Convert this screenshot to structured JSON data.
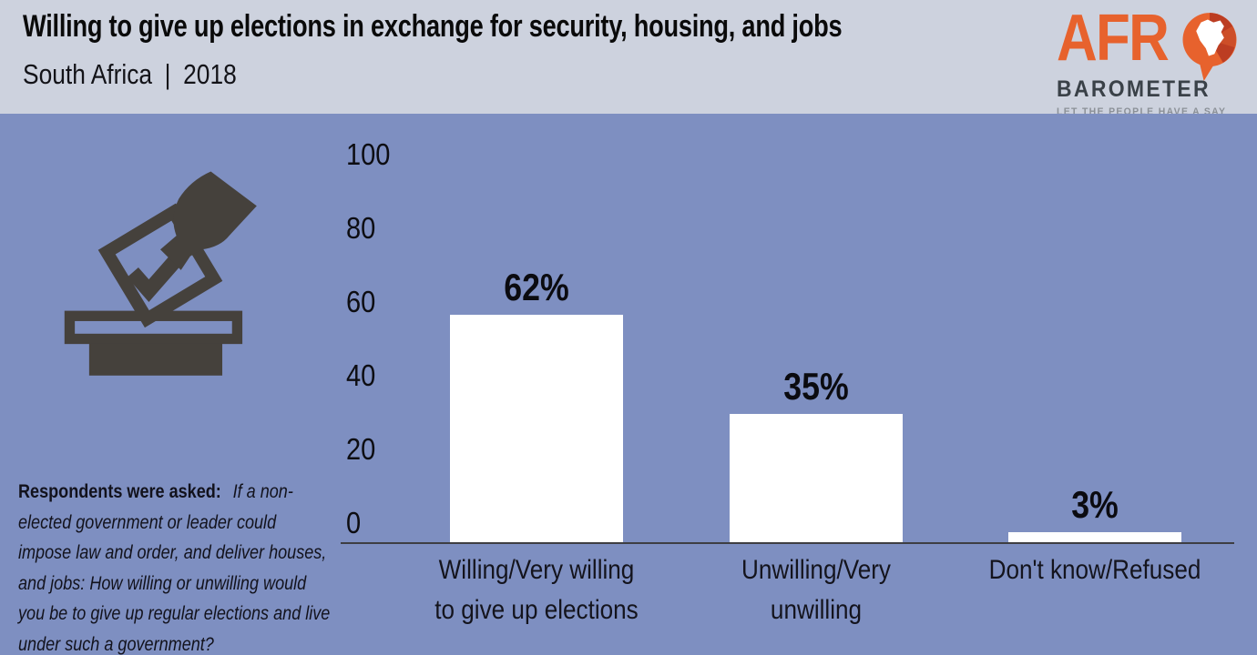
{
  "header": {
    "title": "Willing to give up elections in exchange for security, housing, and jobs",
    "country": "South Africa",
    "separator": "|",
    "year": "2018"
  },
  "logo": {
    "word_part": "AFR",
    "word_o_icon": "africa-speech-bubble-icon",
    "word2": "BAROMETER",
    "tagline": "LET THE PEOPLE HAVE A SAY",
    "orange": "#E7622D",
    "dark_red": "#BC3D22",
    "mid_red": "#CD4E28",
    "slate": "#3A4148",
    "gray": "#8B9097"
  },
  "question": {
    "label": "Respondents were asked:",
    "text": "If a non-elected government or leader could impose law and order, and deliver houses, and jobs: How willing or unwilling would you be to give up regular elections and live under such a government?"
  },
  "icons": {
    "ballot_box": "ballot-box-with-hand-casting-vote",
    "ballot_color": "#45413C"
  },
  "colors": {
    "header_background": "#CDD2DE",
    "chart_background": "#7E8FC1",
    "bar_color": "#FFFFFF",
    "axis_color": "#3E3E42",
    "text_color": "#0d0d12"
  },
  "chart_data": {
    "type": "bar",
    "title": "Willing to give up elections in exchange for security, housing, and jobs",
    "subtitle": "South Africa | 2018",
    "categories": [
      "Willing/Very willing to give up elections",
      "Unwilling/Very unwilling",
      "Don't know/Refused"
    ],
    "category_lines": [
      [
        "Willing/Very willing",
        "to give up elections"
      ],
      [
        "Unwilling/Very",
        "unwilling"
      ],
      [
        "Don't know/Refused"
      ]
    ],
    "values": [
      62,
      35,
      3
    ],
    "value_labels": [
      "62%",
      "35%",
      "3%"
    ],
    "xlabel": "",
    "ylabel": "",
    "ylim": [
      0,
      100
    ],
    "y_ticks": [
      0,
      20,
      40,
      60,
      80,
      100
    ],
    "grid": false,
    "legend": false,
    "bar_color": "#FFFFFF",
    "background": "#7E8FC1"
  }
}
